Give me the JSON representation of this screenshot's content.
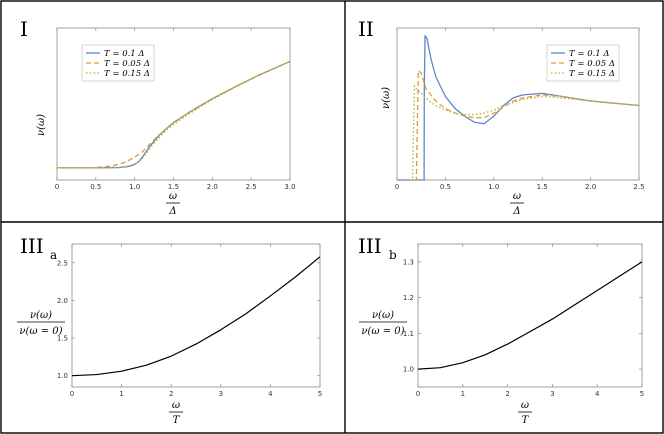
{
  "panels": [
    {
      "label": "I",
      "subscript": ""
    },
    {
      "label": "II",
      "subscript": ""
    },
    {
      "label": "III",
      "subscript": "a"
    },
    {
      "label": "III",
      "subscript": "b"
    }
  ],
  "colors": {
    "series_blue": "#5e89c3",
    "series_orange": "#e09a3a",
    "series_yellow": "#b6b53a",
    "single": "#000000"
  },
  "chart_data": [
    {
      "panel": "I",
      "type": "line",
      "ylabel": "ν(ω)",
      "xlabel": {
        "numerator": "ω",
        "denominator": "Δ"
      },
      "xlim": [
        0,
        3
      ],
      "xticks": [
        "0",
        "0.5",
        "1.0",
        "1.5",
        "2.0",
        "2.5",
        "3.0"
      ],
      "y_tick_labels": false,
      "legend_position": "upper-left",
      "series": [
        {
          "name": "T = 0.1 Δ",
          "style": "solid",
          "color": "#5e89c3",
          "x": [
            0,
            0.5,
            0.8,
            0.9,
            0.95,
            1.0,
            1.05,
            1.1,
            1.2,
            1.3,
            1.4,
            1.5,
            1.7,
            2.0,
            2.3,
            2.6,
            3.0
          ],
          "y": [
            0.08,
            0.08,
            0.082,
            0.087,
            0.093,
            0.103,
            0.12,
            0.151,
            0.225,
            0.285,
            0.335,
            0.378,
            0.445,
            0.535,
            0.615,
            0.69,
            0.78
          ]
        },
        {
          "name": "T = 0.05 Δ",
          "style": "dashed",
          "color": "#e09a3a",
          "x": [
            0,
            0.5,
            0.7,
            0.8,
            0.9,
            1.0,
            1.05,
            1.1,
            1.2,
            1.3,
            1.4,
            1.5,
            1.7,
            2.0,
            2.3,
            2.6,
            3.0
          ],
          "y": [
            0.08,
            0.082,
            0.092,
            0.103,
            0.122,
            0.15,
            0.168,
            0.185,
            0.238,
            0.29,
            0.335,
            0.376,
            0.445,
            0.535,
            0.615,
            0.69,
            0.78
          ]
        },
        {
          "name": "T = 0.15 Δ",
          "style": "dotted",
          "color": "#b6b53a",
          "x": [
            0,
            0.5,
            0.8,
            0.9,
            1.0,
            1.05,
            1.1,
            1.2,
            1.3,
            1.4,
            1.5,
            1.7,
            2.0,
            2.3,
            2.6,
            3.0
          ],
          "y": [
            0.08,
            0.08,
            0.083,
            0.09,
            0.105,
            0.118,
            0.14,
            0.21,
            0.27,
            0.322,
            0.365,
            0.435,
            0.53,
            0.612,
            0.688,
            0.78
          ]
        }
      ]
    },
    {
      "panel": "II",
      "type": "line",
      "ylabel": "ν(ω)",
      "xlabel": {
        "numerator": "ω",
        "denominator": "Δ"
      },
      "xlim": [
        0,
        2.5
      ],
      "xticks": [
        "0",
        "0.5",
        "1.0",
        "1.5",
        "2.0",
        "2.5"
      ],
      "y_tick_labels": false,
      "legend_position": "upper-right",
      "series": [
        {
          "name": "T = 0.1 Δ",
          "style": "solid",
          "color": "#5e89c3",
          "x": [
            0,
            0.28,
            0.282,
            0.29,
            0.31,
            0.35,
            0.4,
            0.5,
            0.6,
            0.7,
            0.8,
            0.9,
            1.0,
            1.1,
            1.2,
            1.3,
            1.5,
            1.7,
            2.0,
            2.5
          ],
          "y": [
            0,
            0,
            0.6,
            0.95,
            0.93,
            0.8,
            0.68,
            0.55,
            0.47,
            0.42,
            0.38,
            0.37,
            0.42,
            0.49,
            0.54,
            0.56,
            0.57,
            0.55,
            0.52,
            0.49
          ]
        },
        {
          "name": "T = 0.05 Δ",
          "style": "dashed",
          "color": "#e09a3a",
          "x": [
            0.18,
            0.2,
            0.22,
            0.25,
            0.28,
            0.3,
            0.35,
            0.4,
            0.5,
            0.6,
            0.7,
            0.8,
            0.9,
            1.0,
            1.1,
            1.2,
            1.3,
            1.5,
            1.7,
            2.0,
            2.5
          ],
          "y": [
            0,
            0,
            0.72,
            0.7,
            0.64,
            0.6,
            0.56,
            0.52,
            0.47,
            0.44,
            0.42,
            0.41,
            0.41,
            0.44,
            0.48,
            0.52,
            0.54,
            0.56,
            0.55,
            0.52,
            0.49
          ]
        },
        {
          "name": "T = 0.15 Δ",
          "style": "dotted",
          "color": "#b6b53a",
          "x": [
            0.14,
            0.16,
            0.18,
            0.2,
            0.25,
            0.3,
            0.35,
            0.4,
            0.5,
            0.6,
            0.7,
            0.8,
            0.9,
            1.0,
            1.1,
            1.2,
            1.3,
            1.5,
            1.7,
            2.0,
            2.5
          ],
          "y": [
            0,
            0,
            0.62,
            0.6,
            0.57,
            0.54,
            0.51,
            0.49,
            0.46,
            0.44,
            0.43,
            0.43,
            0.44,
            0.46,
            0.49,
            0.51,
            0.53,
            0.55,
            0.54,
            0.52,
            0.49
          ]
        }
      ]
    },
    {
      "panel": "IIIa",
      "type": "line",
      "ylabel": {
        "numerator": "ν(ω)",
        "denominator": "ν(ω = 0)"
      },
      "xlabel": {
        "numerator": "ω",
        "denominator": "T"
      },
      "xlim": [
        0,
        5
      ],
      "ylim": [
        0.85,
        2.75
      ],
      "xticks": [
        0,
        1,
        2,
        3,
        4,
        5
      ],
      "yticks": [
        1.0,
        1.5,
        2.0,
        2.5
      ],
      "series": [
        {
          "name": "",
          "style": "solid",
          "color": "#000000",
          "x": [
            0,
            0.5,
            1.0,
            1.5,
            2.0,
            2.5,
            3.0,
            3.5,
            4.0,
            4.5,
            5.0
          ],
          "y": [
            1.0,
            1.015,
            1.06,
            1.14,
            1.26,
            1.42,
            1.61,
            1.82,
            2.06,
            2.31,
            2.58
          ]
        }
      ]
    },
    {
      "panel": "IIIb",
      "type": "line",
      "ylabel": {
        "numerator": "ν(ω)",
        "denominator": "ν(ω = 0)"
      },
      "xlabel": {
        "numerator": "ω",
        "denominator": "T"
      },
      "xlim": [
        0,
        5
      ],
      "ylim": [
        0.95,
        1.35
      ],
      "xticks": [
        0,
        1,
        2,
        3,
        4,
        5
      ],
      "yticks": [
        1.0,
        1.1,
        1.2,
        1.3
      ],
      "series": [
        {
          "name": "",
          "style": "solid",
          "color": "#000000",
          "x": [
            0,
            0.5,
            1.0,
            1.5,
            2.0,
            2.5,
            3.0,
            3.5,
            4.0,
            4.5,
            5.0
          ],
          "y": [
            1.0,
            1.004,
            1.018,
            1.04,
            1.07,
            1.105,
            1.14,
            1.18,
            1.22,
            1.26,
            1.3
          ]
        }
      ]
    }
  ]
}
